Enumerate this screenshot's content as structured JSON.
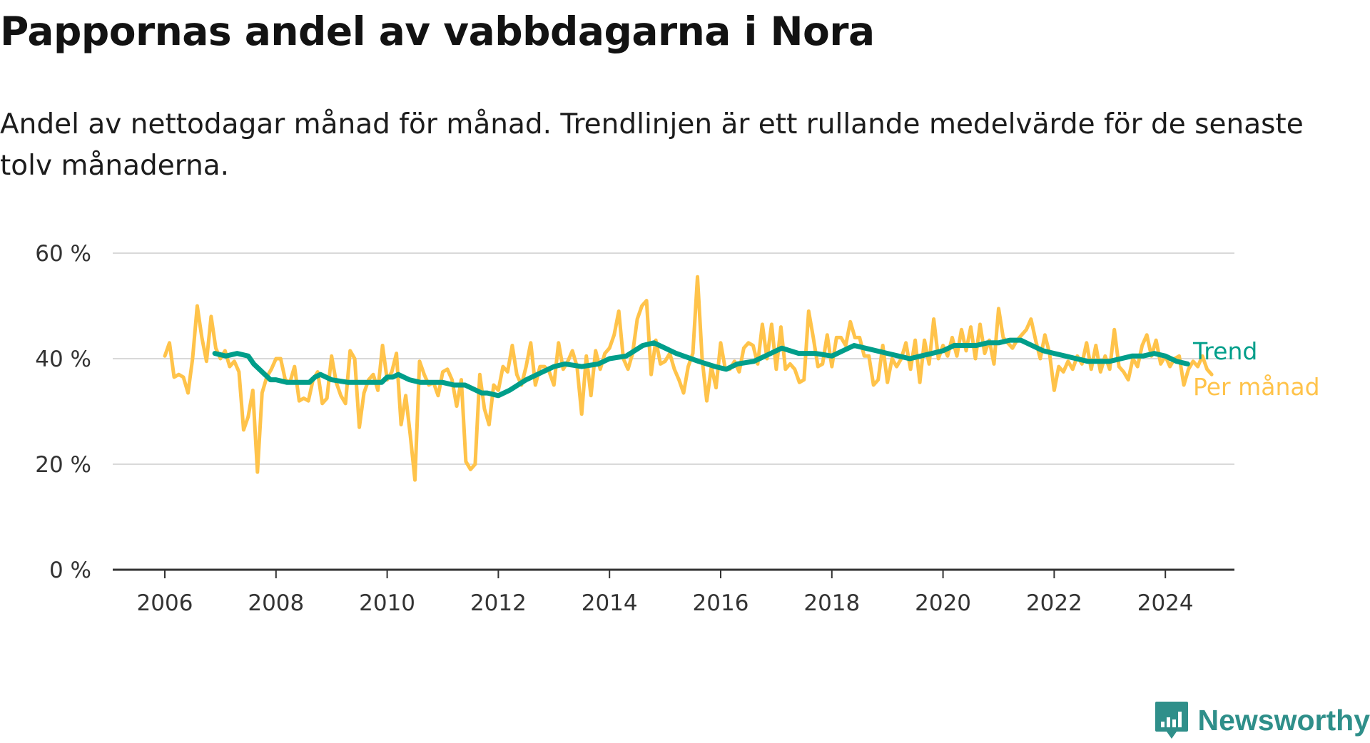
{
  "title": "Pappornas andel av vabbdagarna i Nora",
  "subtitle": "Andel av nettodagar månad för månad. Trendlinjen är ett rullande medelvärde för de senaste tolv månaderna.",
  "brand": {
    "name": "Newsworthy",
    "icon": "bar-chart-speech-bubble-icon",
    "color": "#2f8f8a"
  },
  "chart_data": {
    "type": "line",
    "title": "Pappornas andel av vabbdagarna i Nora",
    "xlabel": "",
    "ylabel": "",
    "xlim": [
      2005.2,
      2025.4
    ],
    "ylim": [
      0,
      60
    ],
    "x_ticks": [
      2006,
      2008,
      2010,
      2012,
      2014,
      2016,
      2018,
      2020,
      2022,
      2024
    ],
    "x_tick_labels": [
      "2006",
      "2008",
      "2010",
      "2012",
      "2014",
      "2016",
      "2018",
      "2020",
      "2022",
      "2024"
    ],
    "y_ticks": [
      0,
      20,
      40,
      60
    ],
    "y_tick_labels": [
      "0 %",
      "20 %",
      "40 %",
      "60 %"
    ],
    "grid": true,
    "legend": "inline labels at line ends (right)",
    "series": [
      {
        "name": "Per månad",
        "color": "#ffc34a",
        "x_start": 2006.0,
        "x_step": 0.08333,
        "values": [
          40.5,
          43.0,
          36.5,
          37.0,
          36.5,
          33.5,
          40.0,
          50.0,
          44.0,
          39.5,
          48.0,
          42.0,
          40.0,
          41.5,
          38.5,
          39.5,
          37.5,
          26.5,
          29.0,
          34.0,
          18.5,
          33.5,
          36.5,
          38.0,
          40.0,
          40.0,
          36.0,
          35.5,
          38.5,
          32.0,
          32.5,
          32.0,
          36.0,
          37.5,
          31.5,
          32.5,
          40.5,
          35.5,
          33.0,
          31.5,
          41.5,
          40.0,
          27.0,
          33.5,
          36.0,
          37.0,
          34.0,
          42.5,
          36.0,
          37.5,
          41.0,
          27.5,
          33.0,
          25.5,
          17.0,
          39.5,
          37.0,
          35.0,
          35.5,
          33.0,
          37.5,
          38.0,
          36.0,
          31.0,
          36.0,
          20.5,
          19.0,
          20.0,
          37.0,
          30.5,
          27.5,
          35.0,
          34.0,
          38.5,
          37.5,
          42.5,
          37.0,
          35.0,
          38.5,
          43.0,
          35.0,
          38.5,
          38.5,
          37.5,
          35.0,
          43.0,
          38.0,
          39.5,
          41.5,
          38.5,
          29.5,
          40.5,
          33.0,
          41.5,
          38.0,
          41.0,
          42.0,
          44.5,
          49.0,
          40.0,
          38.0,
          41.0,
          47.5,
          50.0,
          51.0,
          37.0,
          43.5,
          39.0,
          39.5,
          41.0,
          38.0,
          36.0,
          33.5,
          38.5,
          41.0,
          55.5,
          40.0,
          32.0,
          38.5,
          34.5,
          43.0,
          38.0,
          38.0,
          39.5,
          37.5,
          42.0,
          43.0,
          42.5,
          39.0,
          46.5,
          40.0,
          46.5,
          38.0,
          46.0,
          38.0,
          39.0,
          38.0,
          35.5,
          36.0,
          49.0,
          44.0,
          38.5,
          39.0,
          44.5,
          38.5,
          44.0,
          44.0,
          42.5,
          47.0,
          44.0,
          44.0,
          40.5,
          40.5,
          35.0,
          36.0,
          42.5,
          35.5,
          40.0,
          38.5,
          40.0,
          43.0,
          38.0,
          43.5,
          35.5,
          43.5,
          39.0,
          47.5,
          40.0,
          42.5,
          40.5,
          44.0,
          40.5,
          45.5,
          41.5,
          46.0,
          40.0,
          46.5,
          41.0,
          43.5,
          39.0,
          49.5,
          44.0,
          43.0,
          42.0,
          43.5,
          44.5,
          45.5,
          47.5,
          43.5,
          40.0,
          44.5,
          41.0,
          34.0,
          38.5,
          37.5,
          39.5,
          38.0,
          40.5,
          39.0,
          43.0,
          38.0,
          42.5,
          37.5,
          40.5,
          38.0,
          45.5,
          38.5,
          37.5,
          36.0,
          40.0,
          38.5,
          42.5,
          44.5,
          40.5,
          43.5,
          39.0,
          40.5,
          38.5,
          40.0,
          40.5,
          35.0,
          38.0,
          39.5,
          38.5,
          40.5,
          38.0,
          37.0
        ]
      },
      {
        "name": "Trend",
        "color": "#009e8a",
        "x": [
          2006.9,
          2007.1,
          2007.3,
          2007.5,
          2007.6,
          2007.7,
          2007.8,
          2007.9,
          2008.0,
          2008.2,
          2008.4,
          2008.6,
          2008.7,
          2008.8,
          2009.0,
          2009.3,
          2009.6,
          2009.9,
          2010.0,
          2010.1,
          2010.2,
          2010.4,
          2010.6,
          2010.8,
          2011.0,
          2011.2,
          2011.4,
          2011.6,
          2011.7,
          2011.8,
          2012.0,
          2012.2,
          2012.5,
          2012.8,
          2013.0,
          2013.2,
          2013.5,
          2013.8,
          2014.0,
          2014.3,
          2014.6,
          2014.8,
          2015.0,
          2015.2,
          2015.6,
          2015.9,
          2016.1,
          2016.3,
          2016.6,
          2016.9,
          2017.1,
          2017.4,
          2017.7,
          2018.0,
          2018.2,
          2018.4,
          2018.6,
          2018.8,
          2019.0,
          2019.2,
          2019.4,
          2019.6,
          2019.8,
          2020.0,
          2020.2,
          2020.4,
          2020.6,
          2020.8,
          2021.0,
          2021.2,
          2021.4,
          2021.6,
          2021.8,
          2022.0,
          2022.2,
          2022.4,
          2022.6,
          2022.8,
          2023.0,
          2023.2,
          2023.4,
          2023.6,
          2023.8,
          2024.0,
          2024.2,
          2024.4
        ],
        "values": [
          41.0,
          40.5,
          41.0,
          40.5,
          39.0,
          38.0,
          37.0,
          36.0,
          36.0,
          35.5,
          35.5,
          35.5,
          36.5,
          37.0,
          36.0,
          35.5,
          35.5,
          35.5,
          36.5,
          36.5,
          37.0,
          36.0,
          35.5,
          35.5,
          35.5,
          35.0,
          35.0,
          34.0,
          33.5,
          33.5,
          33.0,
          34.0,
          36.0,
          37.5,
          38.5,
          39.0,
          38.5,
          39.0,
          40.0,
          40.5,
          42.5,
          43.0,
          42.0,
          41.0,
          39.5,
          38.5,
          38.0,
          39.0,
          39.5,
          41.0,
          42.0,
          41.0,
          41.0,
          40.5,
          41.5,
          42.5,
          42.0,
          41.5,
          41.0,
          40.5,
          40.0,
          40.5,
          41.0,
          41.5,
          42.5,
          42.5,
          42.5,
          43.0,
          43.0,
          43.5,
          43.5,
          42.5,
          41.5,
          41.0,
          40.5,
          40.0,
          39.5,
          39.5,
          39.5,
          40.0,
          40.5,
          40.5,
          41.0,
          40.5,
          39.5,
          39.0
        ]
      }
    ]
  }
}
